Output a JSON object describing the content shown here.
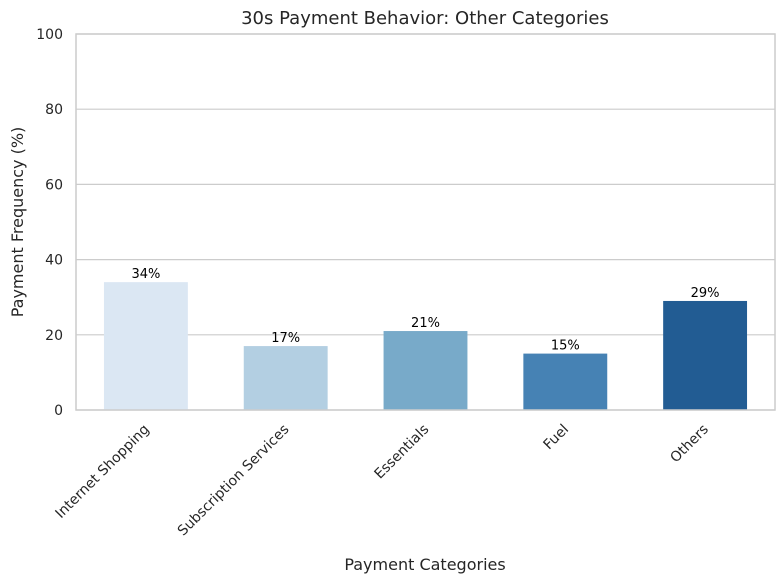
{
  "chart_data": {
    "type": "bar",
    "title": "30s Payment Behavior: Other Categories",
    "xlabel": "Payment Categories",
    "ylabel": "Payment Frequency (%)",
    "categories": [
      "Internet Shopping",
      "Subscription Services",
      "Essentials",
      "Fuel",
      "Others"
    ],
    "values": [
      34,
      17,
      21,
      15,
      29
    ],
    "data_labels": [
      "34%",
      "17%",
      "21%",
      "15%",
      "29%"
    ],
    "ylim": [
      0,
      100
    ],
    "yticks": [
      0,
      20,
      40,
      60,
      80,
      100
    ],
    "grid": "horizontal",
    "colors": [
      "#dbe7f3",
      "#b3cfe2",
      "#78aac9",
      "#4682b4",
      "#225c93"
    ]
  }
}
